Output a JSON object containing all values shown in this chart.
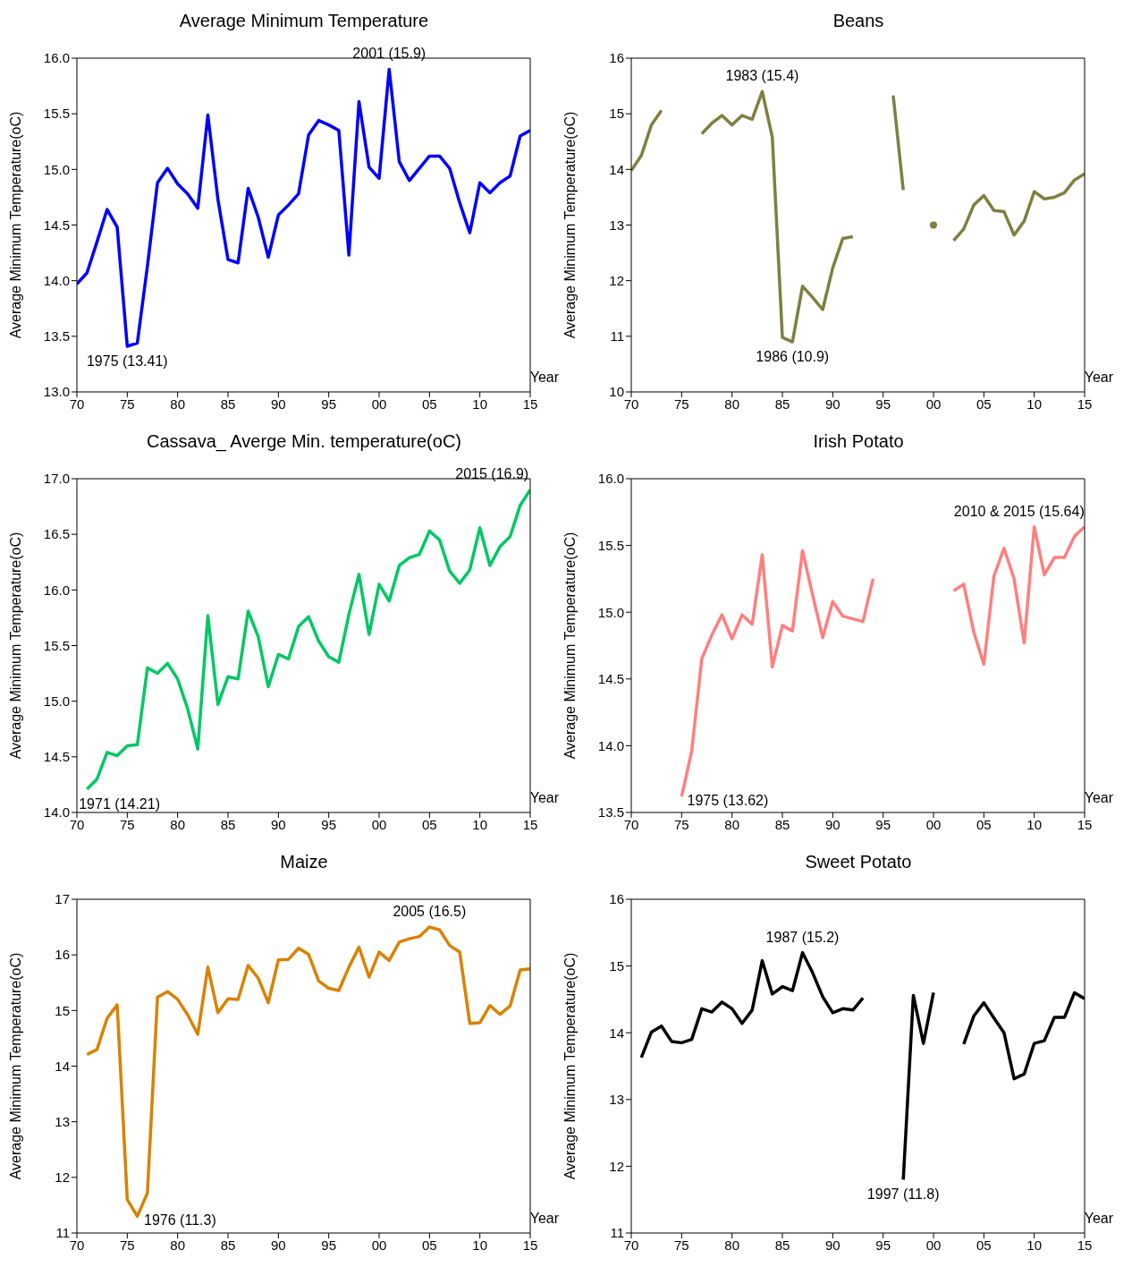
{
  "chart_data": [
    {
      "type": "line",
      "title": "Average Minimum Temperature",
      "xlabel": "Year",
      "ylabel": "Average Minimum Temperature(oC)",
      "x": [
        1970,
        1971,
        1972,
        1973,
        1974,
        1975,
        1976,
        1977,
        1978,
        1979,
        1980,
        1981,
        1982,
        1983,
        1984,
        1985,
        1986,
        1987,
        1988,
        1989,
        1990,
        1991,
        1992,
        1993,
        1994,
        1995,
        1996,
        1997,
        1998,
        1999,
        2000,
        2001,
        2002,
        2003,
        2004,
        2005,
        2006,
        2007,
        2008,
        2009,
        2010,
        2011,
        2012,
        2013,
        2014,
        2015
      ],
      "series": [
        {
          "color": "#0000ff",
          "values": [
            13.97,
            14.07,
            14.35,
            14.64,
            14.48,
            13.41,
            13.44,
            14.13,
            14.88,
            15.01,
            14.87,
            14.78,
            14.65,
            15.49,
            14.73,
            14.19,
            14.16,
            14.83,
            14.57,
            14.21,
            14.59,
            14.68,
            14.78,
            15.31,
            15.44,
            15.4,
            15.35,
            14.23,
            15.61,
            15.02,
            14.92,
            15.9,
            15.07,
            14.9,
            15.01,
            15.12,
            15.12,
            15.01,
            14.7,
            14.43,
            14.88,
            14.79,
            14.88,
            14.94,
            15.3,
            15.35
          ]
        }
      ],
      "xlim": [
        1970,
        2015
      ],
      "xticks": [
        {
          "value": 1970,
          "label": "70"
        },
        {
          "value": 1975,
          "label": "75"
        },
        {
          "value": 1980,
          "label": "80"
        },
        {
          "value": 1985,
          "label": "85"
        },
        {
          "value": 1990,
          "label": "90"
        },
        {
          "value": 1995,
          "label": "95"
        },
        {
          "value": 2000,
          "label": "00"
        },
        {
          "value": 2005,
          "label": "05"
        },
        {
          "value": 2010,
          "label": "10"
        },
        {
          "value": 2015,
          "label": "15"
        }
      ],
      "ylim": [
        13,
        16
      ],
      "yticks": [
        {
          "value": 13,
          "label": "13.0"
        },
        {
          "value": 13.5,
          "label": "13.5"
        },
        {
          "value": 14,
          "label": "14.0"
        },
        {
          "value": 14.5,
          "label": "14.5"
        },
        {
          "value": 15,
          "label": "15.0"
        },
        {
          "value": 15.5,
          "label": "15.5"
        },
        {
          "value": 16,
          "label": "16.0"
        }
      ],
      "annotations": [
        {
          "text": "1975 (13.41)",
          "x": 1975,
          "y": 13.41
        },
        {
          "text": "2001 (15.9)",
          "x": 2001,
          "y": 15.9
        }
      ],
      "grid": false,
      "legend": false
    },
    {
      "type": "line",
      "title": "Beans",
      "xlabel": "Year",
      "ylabel": "Average Minimum Temperature(oC)",
      "x": [
        1970,
        1971,
        1972,
        1973,
        1974,
        1975,
        1976,
        1977,
        1978,
        1979,
        1980,
        1981,
        1982,
        1983,
        1984,
        1985,
        1986,
        1987,
        1988,
        1989,
        1990,
        1991,
        1992,
        1993,
        1994,
        1995,
        1996,
        1997,
        1998,
        1999,
        2000,
        2001,
        2002,
        2003,
        2004,
        2005,
        2006,
        2007,
        2008,
        2009,
        2010,
        2011,
        2012,
        2013,
        2014,
        2015
      ],
      "series": [
        {
          "color": "#7f7f3f",
          "values": [
            13.98,
            14.25,
            14.8,
            15.06,
            null,
            null,
            null,
            14.64,
            14.83,
            14.97,
            14.8,
            14.97,
            14.9,
            15.4,
            14.58,
            10.98,
            10.9,
            11.9,
            11.7,
            11.48,
            12.23,
            12.76,
            12.79,
            null,
            null,
            null,
            15.33,
            13.63,
            null,
            null,
            13.0,
            null,
            12.72,
            12.93,
            13.36,
            13.53,
            13.26,
            13.24,
            12.82,
            13.07,
            13.6,
            13.47,
            13.5,
            13.58,
            13.81,
            13.92
          ]
        }
      ],
      "xlim": [
        1970,
        2015
      ],
      "xticks": [
        {
          "value": 1970,
          "label": "70"
        },
        {
          "value": 1975,
          "label": "75"
        },
        {
          "value": 1980,
          "label": "80"
        },
        {
          "value": 1985,
          "label": "85"
        },
        {
          "value": 1990,
          "label": "90"
        },
        {
          "value": 1995,
          "label": "95"
        },
        {
          "value": 2000,
          "label": "00"
        },
        {
          "value": 2005,
          "label": "05"
        },
        {
          "value": 2010,
          "label": "10"
        },
        {
          "value": 2015,
          "label": "15"
        }
      ],
      "ylim": [
        10,
        16
      ],
      "yticks": [
        10,
        11,
        12,
        13,
        14,
        15,
        16
      ],
      "annotations": [
        {
          "text": "1983 (15.4)",
          "x": 1983,
          "y": 15.4
        },
        {
          "text": "1986 (10.9)",
          "x": 1986,
          "y": 10.9
        }
      ],
      "grid": false,
      "legend": false
    },
    {
      "type": "line",
      "title": "Cassava_ Averge Min. temperature(oC)",
      "xlabel": "Year",
      "ylabel": "Average Minimum Temperature(oC)",
      "x": [
        1971,
        1972,
        1973,
        1974,
        1975,
        1976,
        1977,
        1978,
        1979,
        1980,
        1981,
        1982,
        1983,
        1984,
        1985,
        1986,
        1987,
        1988,
        1989,
        1990,
        1991,
        1992,
        1993,
        1994,
        1995,
        1996,
        1997,
        1998,
        1999,
        2000,
        2001,
        2002,
        2003,
        2004,
        2005,
        2006,
        2007,
        2008,
        2009,
        2010,
        2011,
        2012,
        2013,
        2014,
        2015
      ],
      "series": [
        {
          "color": "#00c864",
          "values": [
            14.21,
            14.3,
            14.54,
            14.51,
            14.6,
            14.61,
            15.3,
            15.25,
            15.34,
            15.2,
            14.93,
            14.57,
            15.77,
            14.97,
            15.22,
            15.2,
            15.81,
            15.58,
            15.13,
            15.42,
            15.38,
            15.67,
            15.76,
            15.54,
            15.4,
            15.35,
            15.78,
            16.14,
            15.6,
            16.05,
            15.9,
            16.22,
            16.29,
            16.32,
            16.53,
            16.45,
            16.17,
            16.06,
            16.18,
            16.56,
            16.22,
            16.39,
            16.48,
            16.76,
            16.9
          ]
        }
      ],
      "xlim": [
        1970,
        2015
      ],
      "xticks": [
        {
          "value": 1970,
          "label": "70"
        },
        {
          "value": 1975,
          "label": "75"
        },
        {
          "value": 1980,
          "label": "80"
        },
        {
          "value": 1985,
          "label": "85"
        },
        {
          "value": 1990,
          "label": "90"
        },
        {
          "value": 1995,
          "label": "95"
        },
        {
          "value": 2000,
          "label": "00"
        },
        {
          "value": 2005,
          "label": "05"
        },
        {
          "value": 2010,
          "label": "10"
        },
        {
          "value": 2015,
          "label": "15"
        }
      ],
      "ylim": [
        14,
        17
      ],
      "yticks": [
        {
          "value": 14,
          "label": "14.0"
        },
        {
          "value": 14.5,
          "label": "14.5"
        },
        {
          "value": 15,
          "label": "15.0"
        },
        {
          "value": 15.5,
          "label": "15.5"
        },
        {
          "value": 16,
          "label": "16.0"
        },
        {
          "value": 16.5,
          "label": "16.5"
        },
        {
          "value": 17,
          "label": "17.0"
        }
      ],
      "annotations": [
        {
          "text": "1971 (14.21)",
          "x": 1971,
          "y": 14.21
        },
        {
          "text": "2015 (16.9)",
          "x": 2015,
          "y": 16.9
        }
      ],
      "grid": false,
      "legend": false
    },
    {
      "type": "line",
      "title": "Irish Potato",
      "xlabel": "Year",
      "ylabel": "Average Minimum Temperature(oC)",
      "x": [
        1975,
        1976,
        1977,
        1978,
        1979,
        1980,
        1981,
        1982,
        1983,
        1984,
        1985,
        1986,
        1987,
        1988,
        1989,
        1990,
        1991,
        1992,
        1993,
        1994,
        1995,
        1996,
        1997,
        1998,
        1999,
        2000,
        2001,
        2002,
        2003,
        2004,
        2005,
        2006,
        2007,
        2008,
        2009,
        2010,
        2011,
        2012,
        2013,
        2014,
        2015
      ],
      "series": [
        {
          "color": "#ff7f7f",
          "values": [
            13.62,
            13.96,
            14.65,
            14.83,
            14.98,
            14.8,
            14.98,
            14.91,
            15.43,
            14.59,
            14.9,
            14.86,
            15.46,
            15.13,
            14.81,
            15.08,
            14.97,
            14.95,
            14.93,
            15.25,
            null,
            null,
            null,
            null,
            null,
            null,
            null,
            15.16,
            15.21,
            14.85,
            14.61,
            15.27,
            15.48,
            15.25,
            14.77,
            15.64,
            15.28,
            15.41,
            15.41,
            15.57,
            15.64
          ]
        }
      ],
      "xlim": [
        1970,
        2015
      ],
      "xticks": [
        {
          "value": 1970,
          "label": "70"
        },
        {
          "value": 1975,
          "label": "75"
        },
        {
          "value": 1980,
          "label": "80"
        },
        {
          "value": 1985,
          "label": "85"
        },
        {
          "value": 1990,
          "label": "90"
        },
        {
          "value": 1995,
          "label": "95"
        },
        {
          "value": 2000,
          "label": "00"
        },
        {
          "value": 2005,
          "label": "05"
        },
        {
          "value": 2010,
          "label": "10"
        },
        {
          "value": 2015,
          "label": "15"
        }
      ],
      "ylim": [
        13.5,
        16
      ],
      "yticks": [
        {
          "value": 13.5,
          "label": "13.5"
        },
        {
          "value": 14,
          "label": "14.0"
        },
        {
          "value": 14.5,
          "label": "14.5"
        },
        {
          "value": 15,
          "label": "15.0"
        },
        {
          "value": 15.5,
          "label": "15.5"
        },
        {
          "value": 16,
          "label": "16.0"
        }
      ],
      "annotations": [
        {
          "text": "1975 (13.62)",
          "x": 1975,
          "y": 13.62
        },
        {
          "text": "2010 & 2015 (15.64)",
          "x": 2010,
          "y": 15.64
        }
      ],
      "grid": false,
      "legend": false
    },
    {
      "type": "line",
      "title": "Maize",
      "xlabel": "Year",
      "ylabel": "Average Minimum Temperature(oC)",
      "x": [
        1971,
        1972,
        1973,
        1974,
        1975,
        1976,
        1977,
        1978,
        1979,
        1980,
        1981,
        1982,
        1983,
        1984,
        1985,
        1986,
        1987,
        1988,
        1989,
        1990,
        1991,
        1992,
        1993,
        1994,
        1995,
        1996,
        1997,
        1998,
        1999,
        2000,
        2001,
        2002,
        2003,
        2004,
        2005,
        2006,
        2007,
        2008,
        2009,
        2010,
        2011,
        2012,
        2013,
        2014,
        2015
      ],
      "series": [
        {
          "color": "#d98200",
          "values": [
            14.21,
            14.3,
            14.86,
            15.1,
            11.6,
            11.3,
            11.72,
            15.24,
            15.34,
            15.2,
            14.92,
            14.57,
            15.78,
            14.96,
            15.21,
            15.2,
            15.81,
            15.58,
            15.14,
            15.91,
            15.92,
            16.12,
            16.01,
            15.53,
            15.4,
            15.36,
            15.78,
            16.14,
            15.6,
            16.05,
            15.9,
            16.23,
            16.29,
            16.33,
            16.5,
            16.45,
            16.17,
            16.05,
            14.77,
            14.78,
            15.09,
            14.93,
            15.08,
            15.73,
            15.75
          ]
        }
      ],
      "xlim": [
        1970,
        2015
      ],
      "xticks": [
        {
          "value": 1970,
          "label": "70"
        },
        {
          "value": 1975,
          "label": "75"
        },
        {
          "value": 1980,
          "label": "80"
        },
        {
          "value": 1985,
          "label": "85"
        },
        {
          "value": 1990,
          "label": "90"
        },
        {
          "value": 1995,
          "label": "95"
        },
        {
          "value": 2000,
          "label": "00"
        },
        {
          "value": 2005,
          "label": "05"
        },
        {
          "value": 2010,
          "label": "10"
        },
        {
          "value": 2015,
          "label": "15"
        }
      ],
      "ylim": [
        11,
        17
      ],
      "yticks": [
        11,
        12,
        13,
        14,
        15,
        16,
        17
      ],
      "annotations": [
        {
          "text": "1976 (11.3)",
          "x": 1976,
          "y": 11.3
        },
        {
          "text": "2005 (16.5)",
          "x": 2005,
          "y": 16.5
        }
      ],
      "grid": false,
      "legend": false
    },
    {
      "type": "line",
      "title": "Sweet Potato",
      "xlabel": "Year",
      "ylabel": "Average Minimum Temperature(oC)",
      "x": [
        1971,
        1972,
        1973,
        1974,
        1975,
        1976,
        1977,
        1978,
        1979,
        1980,
        1981,
        1982,
        1983,
        1984,
        1985,
        1986,
        1987,
        1988,
        1989,
        1990,
        1991,
        1992,
        1993,
        1994,
        1995,
        1996,
        1997,
        1998,
        1999,
        2000,
        2001,
        2002,
        2003,
        2004,
        2005,
        2006,
        2007,
        2008,
        2009,
        2010,
        2011,
        2012,
        2013,
        2014,
        2015
      ],
      "series": [
        {
          "color": "#000000",
          "values": [
            13.63,
            14.01,
            14.1,
            13.87,
            13.85,
            13.9,
            14.36,
            14.31,
            14.46,
            14.36,
            14.14,
            14.34,
            15.08,
            14.58,
            14.69,
            14.63,
            15.2,
            14.9,
            14.54,
            14.3,
            14.36,
            14.34,
            14.52,
            null,
            null,
            null,
            11.8,
            14.56,
            13.84,
            14.6,
            null,
            null,
            13.83,
            14.25,
            14.45,
            14.22,
            14.0,
            13.31,
            13.38,
            13.84,
            13.88,
            14.23,
            14.23,
            14.6,
            14.51
          ]
        }
      ],
      "xlim": [
        1970,
        2015
      ],
      "xticks": [
        {
          "value": 1970,
          "label": "70"
        },
        {
          "value": 1975,
          "label": "75"
        },
        {
          "value": 1980,
          "label": "80"
        },
        {
          "value": 1985,
          "label": "85"
        },
        {
          "value": 1990,
          "label": "90"
        },
        {
          "value": 1995,
          "label": "95"
        },
        {
          "value": 2000,
          "label": "00"
        },
        {
          "value": 2005,
          "label": "05"
        },
        {
          "value": 2010,
          "label": "10"
        },
        {
          "value": 2015,
          "label": "15"
        }
      ],
      "ylim": [
        11,
        16
      ],
      "yticks": [
        11,
        12,
        13,
        14,
        15,
        16
      ],
      "annotations": [
        {
          "text": "1987 (15.2)",
          "x": 1987,
          "y": 15.2
        },
        {
          "text": "1997 (11.8)",
          "x": 1997,
          "y": 11.8
        }
      ],
      "grid": false,
      "legend": false
    }
  ]
}
